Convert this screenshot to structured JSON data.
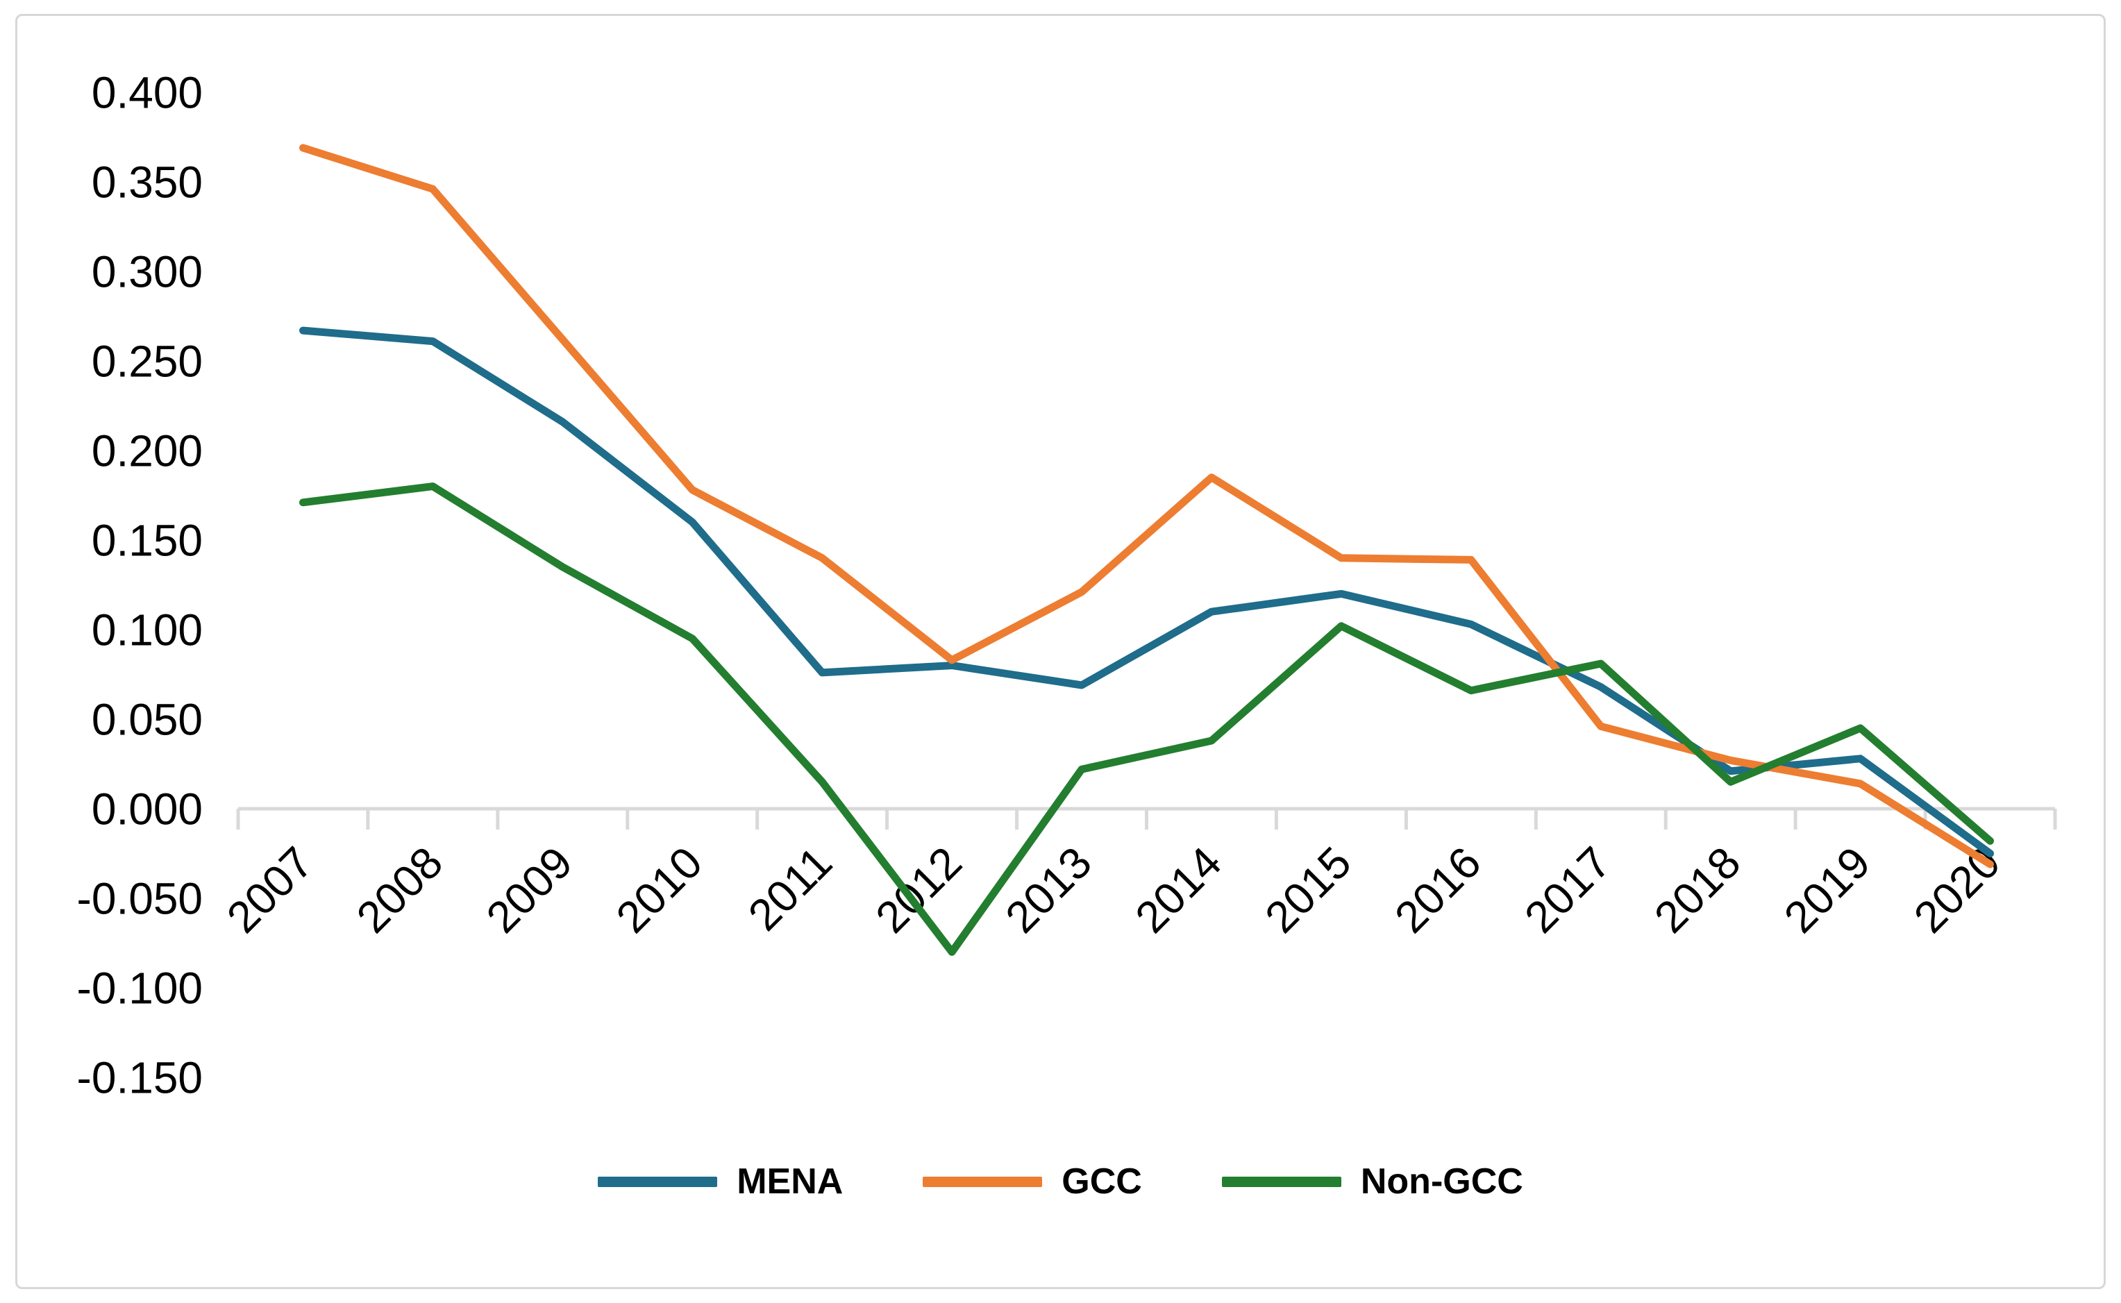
{
  "chart_data": {
    "type": "line",
    "title": "",
    "xlabel": "",
    "ylabel": "",
    "categories": [
      "2007",
      "2008",
      "2009",
      "2010",
      "2011",
      "2012",
      "2013",
      "2014",
      "2015",
      "2016",
      "2017",
      "2018",
      "2019",
      "2020"
    ],
    "series": [
      {
        "name": "MENA",
        "color": "#1F6C8B",
        "values": [
          0.267,
          0.261,
          0.216,
          0.16,
          0.076,
          0.08,
          0.069,
          0.11,
          0.12,
          0.103,
          0.068,
          0.021,
          0.028,
          -0.025
        ]
      },
      {
        "name": "GCC",
        "color": "#ED7D31",
        "values": [
          0.369,
          0.346,
          0.262,
          0.178,
          0.14,
          0.083,
          0.121,
          0.185,
          0.14,
          0.139,
          0.046,
          0.027,
          0.014,
          -0.031
        ]
      },
      {
        "name": "Non-GCC",
        "color": "#237E2F",
        "values": [
          0.171,
          0.18,
          0.135,
          0.095,
          0.015,
          -0.08,
          0.022,
          0.038,
          0.102,
          0.066,
          0.081,
          0.015,
          0.045,
          -0.018
        ]
      }
    ],
    "ylim": [
      -0.15,
      0.4
    ],
    "ytick_step": 0.05,
    "yticks": [
      "0.400",
      "0.350",
      "0.300",
      "0.250",
      "0.200",
      "0.150",
      "0.100",
      "0.050",
      "0.000",
      "-0.050",
      "-0.100",
      "-0.150"
    ],
    "grid": "none",
    "legend_position": "bottom-center",
    "axis_color": "#D9D9D9",
    "tick_label_color": "#000000",
    "x_labels_rotation_deg": -45
  }
}
